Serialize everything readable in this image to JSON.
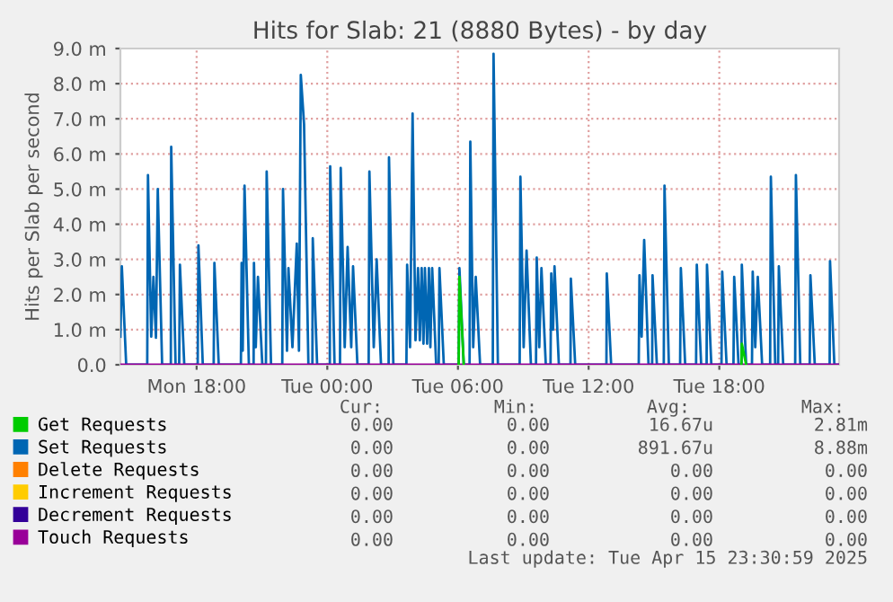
{
  "chart_data": {
    "type": "line",
    "title": "Hits for Slab: 21 (8880 Bytes) - by day",
    "ylabel": "Hits per Slab per second",
    "xlim": [
      "2025-04-14T14:30",
      "2025-04-15T23:30"
    ],
    "xticks": [
      {
        "value": "2025-04-14T18:00",
        "label": "Mon 18:00"
      },
      {
        "value": "2025-04-15T00:00",
        "label": "Tue 00:00"
      },
      {
        "value": "2025-04-15T06:00",
        "label": "Tue 06:00"
      },
      {
        "value": "2025-04-15T12:00",
        "label": "Tue 12:00"
      },
      {
        "value": "2025-04-15T18:00",
        "label": "Tue 18:00"
      }
    ],
    "ylim": [
      0,
      9
    ],
    "yticks": [
      {
        "value": 0,
        "label": "0.0"
      },
      {
        "value": 1,
        "label": "1.0 m"
      },
      {
        "value": 2,
        "label": "2.0 m"
      },
      {
        "value": 3,
        "label": "3.0 m"
      },
      {
        "value": 4,
        "label": "4.0 m"
      },
      {
        "value": 5,
        "label": "5.0 m"
      },
      {
        "value": 6,
        "label": "6.0 m"
      },
      {
        "value": 7,
        "label": "7.0 m"
      },
      {
        "value": 8,
        "label": "8.0 m"
      },
      {
        "value": 9,
        "label": "9.0 m"
      }
    ],
    "grid": true,
    "legend": "bottom left",
    "marker": "none",
    "line_style": "solid",
    "series": [
      {
        "name": "Get Requests",
        "color": "#00cc00",
        "x": [
          "2025-04-15T06:02",
          "2025-04-15T06:04",
          "2025-04-15T06:16",
          "2025-04-15T12:00",
          "2025-04-15T19:01",
          "2025-04-15T19:02",
          "2025-04-15T19:14"
        ],
        "values": [
          0,
          2.5,
          0,
          null,
          0,
          0.6,
          0
        ]
      },
      {
        "name": "Set Requests",
        "color": "#0066b3",
        "x": [
          "2025-04-14T14:30",
          "2025-04-14T14:34",
          "2025-04-14T14:46",
          "2025-04-14T15:44",
          "2025-04-14T15:46",
          "2025-04-14T15:55",
          "2025-04-14T16:01",
          "2025-04-14T16:08",
          "2025-04-14T16:13",
          "2025-04-14T16:25",
          "2025-04-14T16:49",
          "2025-04-14T16:50",
          "2025-04-14T17:02",
          "2025-04-14T17:12",
          "2025-04-14T17:14",
          "2025-04-14T17:26",
          "2025-04-14T18:03",
          "2025-04-14T18:05",
          "2025-04-14T18:17",
          "2025-04-14T18:47",
          "2025-04-14T18:49",
          "2025-04-14T19:01",
          "2025-04-14T20:02",
          "2025-04-14T20:04",
          "2025-04-14T20:07",
          "2025-04-14T20:12",
          "2025-04-14T20:24",
          "2025-04-14T20:37",
          "2025-04-14T20:38",
          "2025-04-14T20:43",
          "2025-04-14T20:49",
          "2025-04-14T21:01",
          "2025-04-14T21:11",
          "2025-04-14T21:13",
          "2025-04-14T21:25",
          "2025-04-14T21:56",
          "2025-04-14T21:58",
          "2025-04-14T22:09",
          "2025-04-14T22:13",
          "2025-04-14T22:24",
          "2025-04-14T22:36",
          "2025-04-14T22:42",
          "2025-04-14T22:47",
          "2025-04-14T22:56",
          "2025-04-14T23:08",
          "2025-04-14T23:19",
          "2025-04-14T23:20",
          "2025-04-14T23:32",
          "2025-04-15T00:07",
          "2025-04-15T00:08",
          "2025-04-15T00:20",
          "2025-04-15T00:35",
          "2025-04-15T00:37",
          "2025-04-15T00:48",
          "2025-04-15T00:56",
          "2025-04-15T01:06",
          "2025-04-15T01:11",
          "2025-04-15T01:23",
          "2025-04-15T01:54",
          "2025-04-15T01:56",
          "2025-04-15T02:08",
          "2025-04-15T02:16",
          "2025-04-15T02:28",
          "2025-04-15T02:49",
          "2025-04-15T02:50",
          "2025-04-15T03:02",
          "2025-04-15T03:38",
          "2025-04-15T03:40",
          "2025-04-15T03:48",
          "2025-04-15T03:55",
          "2025-04-15T04:03",
          "2025-04-15T04:10",
          "2025-04-15T04:15",
          "2025-04-15T04:20",
          "2025-04-15T04:25",
          "2025-04-15T04:29",
          "2025-04-15T04:35",
          "2025-04-15T04:40",
          "2025-04-15T04:44",
          "2025-04-15T04:49",
          "2025-04-15T05:00",
          "2025-04-15T05:07",
          "2025-04-15T05:09",
          "2025-04-15T05:21",
          "2025-04-15T06:02",
          "2025-04-15T06:04",
          "2025-04-15T06:16",
          "2025-04-15T06:32",
          "2025-04-15T06:34",
          "2025-04-15T06:42",
          "2025-04-15T06:49",
          "2025-04-15T07:01",
          "2025-04-15T07:36",
          "2025-04-15T07:38",
          "2025-04-15T07:50",
          "2025-04-15T08:50",
          "2025-04-15T08:52",
          "2025-04-15T09:01",
          "2025-04-15T09:09",
          "2025-04-15T09:21",
          "2025-04-15T09:35",
          "2025-04-15T09:37",
          "2025-04-15T09:44",
          "2025-04-15T09:50",
          "2025-04-15T10:02",
          "2025-04-15T10:15",
          "2025-04-15T10:17",
          "2025-04-15T10:22",
          "2025-04-15T10:26",
          "2025-04-15T10:38",
          "2025-04-15T11:10",
          "2025-04-15T11:11",
          "2025-04-15T11:23",
          "2025-04-15T12:49",
          "2025-04-15T12:50",
          "2025-04-15T13:02",
          "2025-04-15T14:18",
          "2025-04-15T14:20",
          "2025-04-15T14:26",
          "2025-04-15T14:33",
          "2025-04-15T14:45",
          "2025-04-15T14:55",
          "2025-04-15T14:56",
          "2025-04-15T15:08",
          "2025-04-15T15:27",
          "2025-04-15T15:29",
          "2025-04-15T15:41",
          "2025-04-15T16:12",
          "2025-04-15T16:14",
          "2025-04-15T16:26",
          "2025-04-15T16:56",
          "2025-04-15T16:58",
          "2025-04-15T17:10",
          "2025-04-15T17:25",
          "2025-04-15T17:26",
          "2025-04-15T17:38",
          "2025-04-15T18:06",
          "2025-04-15T18:08",
          "2025-04-15T18:20",
          "2025-04-15T18:39",
          "2025-04-15T18:41",
          "2025-04-15T18:53",
          "2025-04-15T19:01",
          "2025-04-15T19:02",
          "2025-04-15T19:14",
          "2025-04-15T19:30",
          "2025-04-15T19:32",
          "2025-04-15T19:39",
          "2025-04-15T19:46",
          "2025-04-15T19:58",
          "2025-04-15T20:20",
          "2025-04-15T20:22",
          "2025-04-15T20:34",
          "2025-04-15T20:42",
          "2025-04-15T20:44",
          "2025-04-15T20:56",
          "2025-04-15T21:29",
          "2025-04-15T21:31",
          "2025-04-15T21:43",
          "2025-04-15T22:09",
          "2025-04-15T22:11",
          "2025-04-15T22:23",
          "2025-04-15T23:04",
          "2025-04-15T23:05",
          "2025-04-15T23:17",
          "2025-04-15T23:30"
        ],
        "values": [
          0.8,
          2.8,
          0,
          0,
          5.4,
          0.8,
          2.5,
          0.77,
          5.0,
          0,
          0,
          6.2,
          0,
          0,
          2.85,
          0,
          0,
          3.4,
          0,
          0,
          2.9,
          0,
          0,
          2.9,
          0.4,
          5.1,
          0,
          0,
          2.9,
          0.5,
          2.5,
          0,
          0,
          5.5,
          0,
          0,
          5.0,
          0.4,
          2.75,
          0.5,
          3.45,
          0.4,
          8.25,
          6.85,
          0,
          0,
          3.6,
          0,
          0,
          5.65,
          0,
          0,
          5.6,
          0.5,
          3.35,
          0.5,
          2.8,
          0,
          0,
          5.5,
          0.5,
          3.0,
          0,
          0,
          5.9,
          0,
          0,
          2.85,
          0.5,
          7.15,
          0.7,
          2.75,
          0.7,
          2.75,
          0.6,
          2.75,
          0.6,
          2.75,
          0.5,
          2.75,
          0,
          0,
          2.75,
          0,
          0,
          2.75,
          0,
          0,
          6.35,
          0.5,
          2.5,
          0,
          0,
          8.85,
          0,
          0,
          5.35,
          0.5,
          3.25,
          0,
          0,
          3.05,
          0.5,
          2.75,
          0,
          0,
          2.6,
          1.0,
          2.8,
          0,
          0,
          2.45,
          0,
          0,
          2.6,
          0,
          0,
          2.55,
          0.8,
          3.55,
          0,
          0,
          2.55,
          0,
          0,
          5.1,
          0,
          0,
          2.75,
          0,
          0,
          2.85,
          0,
          0,
          2.85,
          0,
          0,
          2.65,
          0,
          0,
          2.5,
          0,
          0,
          2.85,
          0,
          0,
          2.65,
          0.5,
          2.5,
          0,
          0,
          5.35,
          0,
          0,
          2.8,
          0,
          0,
          5.4,
          0,
          0,
          2.55,
          0,
          0,
          2.95,
          0,
          0
        ]
      },
      {
        "name": "Delete Requests",
        "color": "#ff8000"
      },
      {
        "name": "Increment Requests",
        "color": "#ffcc00"
      },
      {
        "name": "Decrement Requests",
        "color": "#330099"
      },
      {
        "name": "Touch Requests",
        "color": "#990099",
        "x": [
          "2025-04-14T14:30",
          "2025-04-15T23:30"
        ],
        "values": [
          0,
          0
        ]
      }
    ],
    "annotations": [
      "Cur:",
      "Min:",
      "Avg:",
      "Max:",
      "0.00",
      "0.00",
      "16.67u",
      "2.81m",
      "0.00",
      "0.00",
      "891.67u",
      "8.88m",
      "0.00",
      "0.00",
      "0.00",
      "0.00",
      "0.00",
      "0.00",
      "0.00",
      "0.00",
      "0.00",
      "0.00",
      "0.00",
      "0.00",
      "0.00",
      "0.00",
      "0.00",
      "0.00",
      "Last update: Tue Apr 15 23:30:59 2025"
    ]
  }
}
